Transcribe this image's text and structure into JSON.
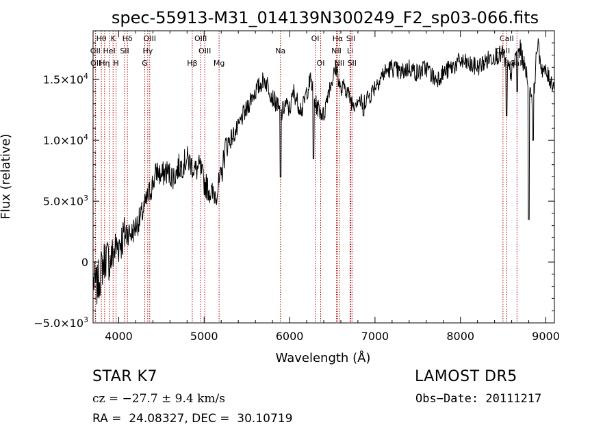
{
  "chart_data": {
    "type": "line",
    "title": "spec-55913-M31_014139N300249_F2_sp03-066.fits",
    "xlabel": "Wavelength (Å)",
    "ylabel": "Flux (relative)",
    "xlim": [
      3700,
      9100
    ],
    "ylim": [
      -5000,
      19000
    ],
    "x_ticks": [
      4000,
      5000,
      6000,
      7000,
      8000,
      9000
    ],
    "x_tick_labels": [
      "4000",
      "5000",
      "6000",
      "7000",
      "8000",
      "9000"
    ],
    "y_ticks": [
      -5000,
      0,
      5000,
      10000,
      15000
    ],
    "y_tick_labels": [
      {
        "mantissa": "−5.0×10",
        "exp": "3"
      },
      {
        "mantissa": "0",
        "exp": ""
      },
      {
        "mantissa": "5.0×10",
        "exp": "3"
      },
      {
        "mantissa": "1.0×10",
        "exp": "4"
      },
      {
        "mantissa": "1.5×10",
        "exp": "4"
      }
    ],
    "series": [
      {
        "x": [
          3700,
          3750,
          3800,
          3850,
          3900,
          3950,
          4000,
          4050,
          4100,
          4150,
          4200,
          4250,
          4300,
          4350,
          4400,
          4450,
          4500,
          4550,
          4600,
          4650,
          4700,
          4750,
          4800,
          4850,
          4900,
          4950,
          5000,
          5050,
          5100,
          5150,
          5200,
          5250,
          5300,
          5350,
          5400,
          5450,
          5500,
          5550,
          5600,
          5650,
          5700,
          5750,
          5800,
          5850,
          5900,
          5950,
          6000,
          6050,
          6100,
          6150,
          6200,
          6250,
          6300,
          6350,
          6400,
          6450,
          6500,
          6550,
          6600,
          6650,
          6700,
          6750,
          6800,
          6850,
          6900,
          6950,
          7000,
          7100,
          7200,
          7300,
          7400,
          7500,
          7600,
          7700,
          7800,
          7900,
          8000,
          8100,
          8200,
          8300,
          8400,
          8500,
          8550,
          8600,
          8650,
          8700,
          8750,
          8800,
          8850,
          8900,
          8950,
          9000,
          9050,
          9100
        ],
        "y": [
          -1500,
          -2000,
          -500,
          500,
          0,
          1000,
          1500,
          2000,
          2500,
          2300,
          3000,
          3500,
          4500,
          5500,
          6500,
          7500,
          7000,
          7500,
          7200,
          7000,
          7800,
          8000,
          8500,
          8000,
          7500,
          7800,
          6500,
          6000,
          5500,
          5800,
          7000,
          9500,
          10000,
          10500,
          11000,
          12000,
          12500,
          13500,
          14000,
          14500,
          15000,
          14500,
          13500,
          13000,
          12000,
          13000,
          12500,
          14000,
          13000,
          12500,
          14000,
          15000,
          13000,
          12500,
          12000,
          14000,
          15000,
          16000,
          14000,
          14500,
          13500,
          13000,
          13500,
          13000,
          13500,
          13800,
          14500,
          15500,
          16000,
          15500,
          16000,
          15500,
          16000,
          15000,
          15500,
          16000,
          16500,
          16200,
          16000,
          16500,
          17000,
          17000,
          16000,
          15500,
          17000,
          17500,
          16000,
          15000,
          13000,
          18000,
          16000,
          15500,
          15000,
          14500
        ],
        "dips": [
          [
            5895,
            7000
          ],
          [
            6280,
            8500
          ],
          [
            6865,
            12000
          ],
          [
            8540,
            12000
          ],
          [
            8665,
            14000
          ],
          [
            8800,
            3500
          ],
          [
            8850,
            10000
          ]
        ]
      }
    ],
    "line_marks": [
      {
        "label": "Hθ",
        "x": 3797,
        "row": 0
      },
      {
        "label": "OII",
        "x": 3727,
        "row": 1
      },
      {
        "label": "OII",
        "x": 3729,
        "row": 2
      },
      {
        "label": "K",
        "x": 3934,
        "row": 0
      },
      {
        "label": "HeI",
        "x": 3889,
        "row": 1
      },
      {
        "label": "Hη",
        "x": 3835,
        "row": 2
      },
      {
        "label": "H",
        "x": 3969,
        "row": 2
      },
      {
        "label": "Hδ",
        "x": 4102,
        "row": 0
      },
      {
        "label": "SII",
        "x": 4069,
        "row": 1
      },
      {
        "label": "OIII",
        "x": 4363,
        "row": 0
      },
      {
        "label": "Hγ",
        "x": 4340,
        "row": 1
      },
      {
        "label": "G",
        "x": 4305,
        "row": 2
      },
      {
        "label": "Hβ",
        "x": 4861,
        "row": 2
      },
      {
        "label": "OIII",
        "x": 4959,
        "row": 0
      },
      {
        "label": "OIII",
        "x": 5007,
        "row": 1
      },
      {
        "label": "Mg",
        "x": 5175,
        "row": 2
      },
      {
        "label": "Na",
        "x": 5893,
        "row": 1
      },
      {
        "label": "OI",
        "x": 6300,
        "row": 0
      },
      {
        "label": "OI",
        "x": 6364,
        "row": 2
      },
      {
        "label": "Hα",
        "x": 6563,
        "row": 0
      },
      {
        "label": "NII",
        "x": 6548,
        "row": 1
      },
      {
        "label": "NII",
        "x": 6583,
        "row": 2
      },
      {
        "label": "SII",
        "x": 6716,
        "row": 0
      },
      {
        "label": "Li",
        "x": 6708,
        "row": 1
      },
      {
        "label": "SII",
        "x": 6731,
        "row": 2
      },
      {
        "label": "CaII",
        "x": 8542,
        "row": 0
      },
      {
        "label": "CaII",
        "x": 8498,
        "row": 1
      },
      {
        "label": "CaII",
        "x": 8662,
        "row": 2
      }
    ]
  },
  "info": {
    "obj_class": "STAR    K7",
    "survey": "LAMOST  DR5",
    "cz": "cz = −27.7 ± 9.4 km/s",
    "obs_date": "Obs−Date: 20111217",
    "coords": "RA =  24.08327, DEC =  30.10719"
  }
}
